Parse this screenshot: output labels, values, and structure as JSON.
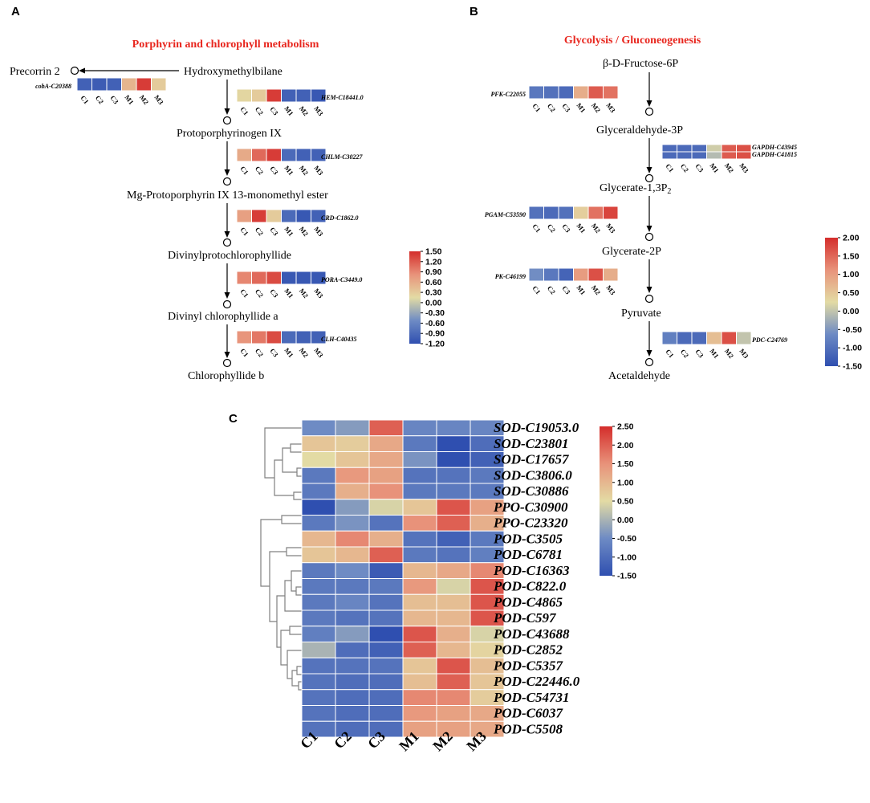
{
  "panels": {
    "A": {
      "letter": "A",
      "title": "Porphyrin and chlorophyll metabolism",
      "side_compound": "Precorrin 2",
      "compounds": [
        "Hydroxymethylbilane",
        "Protoporphyrinogen IX",
        "Mg-Protoporphyrin IX 13-monomethyl ester",
        "Divinylprotochlorophyllide",
        "Divinyl chlorophyllide a",
        "Chlorophyllide b"
      ]
    },
    "B": {
      "letter": "B",
      "title": "Glycolysis / Gluconeogenesis",
      "compounds": [
        "β-D-Fructose-6P",
        "Glyceraldehyde-3P",
        "Glycerate-1,3P",
        "Glycerate-2P",
        "Pyruvate",
        "Acetaldehyde"
      ],
      "compound_subscript": "2"
    },
    "C": {
      "letter": "C"
    }
  },
  "chart_data": [
    {
      "type": "heatmap",
      "panel": "A",
      "title": "Porphyrin and chlorophyll metabolism",
      "columns": [
        "C1",
        "C2",
        "C3",
        "M1",
        "M2",
        "M3"
      ],
      "color_scale": {
        "min": -1.2,
        "max": 1.5,
        "ticks": [
          "1.50",
          "1.20",
          "0.90",
          "0.60",
          "0.30",
          "0.00",
          "-0.30",
          "-0.60",
          "-0.90",
          "-1.20"
        ]
      },
      "rows": [
        {
          "gene": "cobA-C20388",
          "values": [
            -1.0,
            -1.05,
            -1.0,
            0.5,
            1.4,
            0.3
          ]
        },
        {
          "gene": "HEM-C18441.0",
          "values": [
            0.2,
            0.3,
            1.4,
            -1.0,
            -1.0,
            -1.1
          ]
        },
        {
          "gene": "CHLM-C30227",
          "values": [
            0.6,
            1.1,
            1.4,
            -0.9,
            -1.0,
            -1.0
          ]
        },
        {
          "gene": "CRD-C1862.0",
          "values": [
            0.7,
            1.4,
            0.3,
            -0.9,
            -1.1,
            -1.0
          ]
        },
        {
          "gene": "PORA-C3449.0",
          "values": [
            0.9,
            1.1,
            1.3,
            -1.1,
            -1.1,
            -1.1
          ]
        },
        {
          "gene": "CLH-C40435",
          "values": [
            0.8,
            1.0,
            1.3,
            -0.9,
            -1.0,
            -1.0
          ]
        }
      ]
    },
    {
      "type": "heatmap",
      "panel": "B",
      "title": "Glycolysis / Gluconeogenesis",
      "columns": [
        "C1",
        "C2",
        "C3",
        "M1",
        "M2",
        "M3"
      ],
      "color_scale": {
        "min": -1.5,
        "max": 2.0,
        "ticks": [
          "2.00",
          "1.50",
          "1.00",
          "0.50",
          "0.00",
          "-0.50",
          "-1.00",
          "-1.50"
        ]
      },
      "rows": [
        {
          "gene": "PFK-C22055",
          "values": [
            -0.9,
            -1.0,
            -1.1,
            0.8,
            1.6,
            1.4
          ]
        },
        {
          "gene": "GAPDH-C43945",
          "values": [
            -1.1,
            -1.1,
            -1.1,
            0.1,
            1.6,
            1.7
          ]
        },
        {
          "gene": "GAPDH-C41815",
          "values": [
            -1.1,
            -1.1,
            -1.1,
            -0.1,
            1.6,
            1.7
          ]
        },
        {
          "gene": "PGAM-C53590",
          "values": [
            -1.0,
            -1.1,
            -1.0,
            0.4,
            1.4,
            1.8
          ]
        },
        {
          "gene": "PK-C46199",
          "values": [
            -0.6,
            -0.9,
            -1.2,
            1.0,
            1.7,
            0.8
          ]
        },
        {
          "gene": "PDC-C24769",
          "values": [
            -0.8,
            -1.1,
            -1.1,
            0.6,
            1.7,
            0.0
          ]
        }
      ]
    },
    {
      "type": "heatmap",
      "panel": "C",
      "columns": [
        "C1",
        "C2",
        "C3",
        "M1",
        "M2",
        "M3"
      ],
      "color_scale": {
        "min": -1.5,
        "max": 2.5,
        "ticks": [
          "2.50",
          "2.00",
          "1.50",
          "1.00",
          "0.50",
          "0.00",
          "-0.50",
          "-1.00",
          "-1.50"
        ]
      },
      "rows": [
        {
          "gene": "SOD-C19053.0",
          "values": [
            -0.5,
            -0.3,
            2.0,
            -0.6,
            -0.6,
            -0.6
          ]
        },
        {
          "gene": "SOD-C23801",
          "values": [
            0.8,
            0.7,
            1.2,
            -0.8,
            -1.5,
            -1.0
          ]
        },
        {
          "gene": "SOD-C17657",
          "values": [
            0.5,
            0.8,
            1.2,
            -0.4,
            -1.5,
            -1.2
          ]
        },
        {
          "gene": "SOD-C3806.0",
          "values": [
            -0.8,
            1.4,
            1.3,
            -0.9,
            -0.9,
            -0.8
          ]
        },
        {
          "gene": "SOD-C30886",
          "values": [
            -0.8,
            1.1,
            1.5,
            -0.8,
            -0.8,
            -0.8
          ]
        },
        {
          "gene": "PPO-C30900",
          "values": [
            -1.5,
            -0.3,
            0.4,
            0.8,
            2.1,
            1.3
          ]
        },
        {
          "gene": "PPO-C23320",
          "values": [
            -0.8,
            -0.4,
            -0.9,
            1.5,
            2.0,
            1.1
          ]
        },
        {
          "gene": "POD-C3505",
          "values": [
            1.0,
            1.6,
            1.1,
            -0.9,
            -1.2,
            -0.8
          ]
        },
        {
          "gene": "POD-C6781",
          "values": [
            0.8,
            1.0,
            2.0,
            -0.8,
            -0.9,
            -0.7
          ]
        },
        {
          "gene": "POD-C16363",
          "values": [
            -0.8,
            -0.5,
            -1.3,
            1.0,
            1.2,
            1.6
          ]
        },
        {
          "gene": "POD-C822.0",
          "values": [
            -0.8,
            -0.8,
            -0.8,
            1.4,
            0.4,
            2.1
          ]
        },
        {
          "gene": "POD-C4865",
          "values": [
            -0.8,
            -0.6,
            -0.9,
            0.9,
            0.9,
            2.1
          ]
        },
        {
          "gene": "POD-C597",
          "values": [
            -0.8,
            -0.9,
            -0.9,
            1.0,
            1.0,
            2.1
          ]
        },
        {
          "gene": "POD-C43688",
          "values": [
            -0.7,
            -0.3,
            -1.5,
            2.1,
            1.1,
            0.4
          ]
        },
        {
          "gene": "POD-C2852",
          "values": [
            0.0,
            -1.0,
            -1.2,
            2.0,
            1.0,
            0.6
          ]
        },
        {
          "gene": "POD-C5357",
          "values": [
            -0.9,
            -0.9,
            -0.9,
            0.8,
            2.1,
            0.9
          ]
        },
        {
          "gene": "POD-C22446.0",
          "values": [
            -0.9,
            -1.0,
            -1.0,
            0.9,
            2.0,
            0.8
          ]
        },
        {
          "gene": "POD-C54731",
          "values": [
            -0.9,
            -1.0,
            -1.0,
            1.6,
            1.6,
            0.7
          ]
        },
        {
          "gene": "POD-C6037",
          "values": [
            -0.9,
            -1.0,
            -1.0,
            1.4,
            1.3,
            1.2
          ]
        },
        {
          "gene": "POD-C5508",
          "values": [
            -0.9,
            -1.0,
            -1.0,
            1.3,
            1.3,
            1.2
          ]
        }
      ]
    }
  ],
  "colors": {
    "low": "#2f4fb0",
    "mid_low": "#6e8bc4",
    "mid": "#e3dba4",
    "mid_high": "#e8927a",
    "high": "#d42d2b",
    "title_red": "#e8261e"
  }
}
